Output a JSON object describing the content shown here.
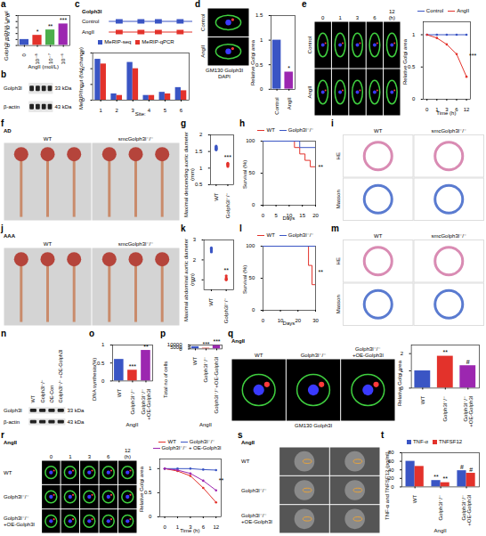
{
  "chart_data": [
    {
      "panel": "a",
      "type": "bar",
      "ylabel": "Golph3l mRNA Level",
      "xlabel": "AngII (mol/L)",
      "categories": [
        "0",
        "10⁻⁸",
        "10⁻⁷",
        "10⁻⁶"
      ],
      "values": [
        1.0,
        1.7,
        2.6,
        3.6
      ],
      "colors": [
        "#3a55c4",
        "#e3322b",
        "#4cae4c",
        "#9c27b0"
      ],
      "ylim": [
        0,
        5
      ],
      "yticks": [
        0,
        1,
        2,
        3,
        4,
        5
      ],
      "annotations": [
        {
          "category": "10⁻⁸",
          "text": "*"
        },
        {
          "category": "10⁻⁷",
          "text": "**"
        },
        {
          "category": "10⁻⁶",
          "text": "***"
        }
      ]
    },
    {
      "panel": "c",
      "type": "bar",
      "ylabel": "MeRIP/Input (fold change)",
      "xlabel": "Site:",
      "categories": [
        "1",
        "2",
        "3",
        "4",
        "5",
        "6"
      ],
      "series": [
        {
          "name": "MeRIP-seq",
          "color": "#3a55c4",
          "values": [
            2.6,
            0.4,
            2.4,
            0.3,
            0.5,
            0.8
          ]
        },
        {
          "name": "MeRIP-qPCR",
          "color": "#e3322b",
          "values": [
            2.3,
            0.3,
            2.0,
            0.3,
            0.4,
            0.6
          ]
        }
      ],
      "ylim": [
        0,
        3
      ],
      "yticks": [
        0,
        1,
        2,
        3
      ],
      "legend": "top"
    },
    {
      "panel": "d",
      "type": "bar",
      "ylabel": "Relative Golgi area",
      "categories": [
        "Control",
        "AngII"
      ],
      "values": [
        1.0,
        0.35
      ],
      "colors": [
        "#3a55c4",
        "#9c27b0"
      ],
      "ylim": [
        0,
        1.5
      ],
      "yticks": [
        0,
        0.5,
        1,
        1.5
      ],
      "annotations": [
        {
          "category": "AngII",
          "text": "*"
        }
      ]
    },
    {
      "panel": "e",
      "type": "line",
      "marker": "circle",
      "ylabel": "Relative Golgi area",
      "xlabel": "Time (h)",
      "categories": [
        "0",
        "1",
        "3",
        "6",
        "12"
      ],
      "series": [
        {
          "name": "Control",
          "color": "#3a55c4",
          "values": [
            1,
            1,
            1,
            1,
            1
          ]
        },
        {
          "name": "AngII",
          "color": "#e3322b",
          "values": [
            1,
            0.95,
            0.85,
            0.7,
            0.35
          ]
        }
      ],
      "ylim": [
        0,
        1.2
      ],
      "yticks": [
        0,
        0.5,
        1
      ],
      "legend": "top",
      "annotations": [
        {
          "category": "12",
          "y": 0.67,
          "text": "***"
        }
      ]
    },
    {
      "panel": "g",
      "type": "scatter",
      "ylabel": "Maximal descending aortic diameter (mm)",
      "categories": [
        "WT",
        "Golph3l⁻/⁻"
      ],
      "groups": [
        {
          "category": "WT",
          "color": "#3a55c4",
          "values": [
            1.55,
            1.6,
            1.63,
            1.58,
            1.66,
            1.6
          ]
        },
        {
          "category": "Golph3l⁻/⁻",
          "color": "#e3322b",
          "values": [
            1.05,
            1.1,
            1.15,
            1.08,
            1.12
          ]
        }
      ],
      "ylim": [
        0.5,
        2
      ],
      "yticks": [
        0.5,
        1,
        1.5,
        2
      ],
      "annotations": [
        {
          "category": "Golph3l⁻/⁻",
          "text": "***"
        }
      ]
    },
    {
      "panel": "h",
      "type": "line",
      "line_style": "step",
      "ylabel": "Survival (%)",
      "xlabel": "Days",
      "series": [
        {
          "name": "WT",
          "color": "#e3322b",
          "x": [
            0,
            10,
            12,
            14,
            16,
            18,
            20
          ],
          "values": [
            100,
            100,
            90,
            80,
            70,
            60,
            40
          ]
        },
        {
          "name": "Golph3l⁻/⁻",
          "color": "#3a55c4",
          "x": [
            0,
            14,
            20
          ],
          "values": [
            100,
            90,
            80
          ]
        }
      ],
      "xlim": [
        0,
        20
      ],
      "xticks": [
        0,
        5,
        10,
        15,
        20
      ],
      "ylim": [
        0,
        100
      ],
      "yticks": [
        0,
        50,
        100
      ],
      "legend": "top",
      "annotations": [
        {
          "x": 20,
          "y": 60,
          "text": "**"
        }
      ]
    },
    {
      "panel": "k",
      "type": "scatter",
      "ylabel": "Maximal abdominal aortic diameter (mm)",
      "categories": [
        "WT",
        "Golph3l⁻/⁻"
      ],
      "groups": [
        {
          "category": "WT",
          "color": "#3a55c4",
          "values": [
            2.4,
            2.5,
            2.55,
            2.45,
            2.6
          ]
        },
        {
          "category": "Golph3l⁻/⁻",
          "color": "#e3322b",
          "values": [
            1.0,
            1.1,
            1.2,
            1.05
          ]
        }
      ],
      "ylim": [
        0.5,
        3
      ],
      "yticks": [
        1,
        2,
        3
      ],
      "annotations": [
        {
          "category": "Golph3l⁻/⁻",
          "text": "**"
        }
      ]
    },
    {
      "panel": "l",
      "type": "line",
      "line_style": "step",
      "ylabel": "Survival (%)",
      "xlabel": "Days",
      "series": [
        {
          "name": "WT",
          "color": "#e3322b",
          "x": [
            0,
            24,
            26,
            28,
            30
          ],
          "values": [
            100,
            100,
            70,
            40,
            20
          ]
        },
        {
          "name": "Golph3l⁻/⁻",
          "color": "#3a55c4",
          "x": [
            0,
            30
          ],
          "values": [
            100,
            100
          ]
        }
      ],
      "xlim": [
        0,
        30
      ],
      "xticks": [
        0,
        10,
        20,
        30
      ],
      "ylim": [
        0,
        100
      ],
      "yticks": [
        0,
        50,
        100
      ],
      "legend": "top",
      "annotations": [
        {
          "x": 30,
          "y": 60,
          "text": "**"
        }
      ]
    },
    {
      "panel": "o",
      "type": "bar",
      "ylabel": "DNA synthesis(%)",
      "xlabel": "AngII",
      "categories": [
        "WT",
        "Golph3l⁻/⁻",
        "Golph3l⁻/⁻+OE-Golph3l"
      ],
      "values": [
        0.6,
        0.3,
        0.85
      ],
      "colors": [
        "#3a55c4",
        "#e3322b",
        "#9c27b0"
      ],
      "ylim": [
        0,
        1
      ],
      "yticks": [
        0,
        0.5,
        1
      ],
      "annotations": [
        {
          "category": "Golph3l⁻/⁻",
          "text": "***"
        },
        {
          "category": "Golph3l⁻/⁻+OE-Golph3l",
          "text": "**"
        }
      ]
    },
    {
      "panel": "p",
      "type": "bar",
      "ylabel": "Total no of cells",
      "xlabel": "AngII",
      "categories": [
        "WT",
        "Golph3l⁻/⁻",
        "Golph3l⁻/⁻+OE-Golph3l"
      ],
      "values": [
        5800,
        1800,
        8500
      ],
      "colors": [
        "#3a55c4",
        "#e3322b",
        "#9c27b0"
      ],
      "ylim": [
        0,
        10000
      ],
      "yticks": [
        0,
        5000,
        10000
      ],
      "annotations": [
        {
          "category": "Golph3l⁻/⁻",
          "text": "***"
        },
        {
          "category": "Golph3l⁻/⁻+OE-Golph3l",
          "text": "***"
        }
      ]
    },
    {
      "panel": "q",
      "type": "bar",
      "ylabel": "Relative Golgi area",
      "categories": [
        "WT",
        "Golph3l⁻/⁻",
        "Golph3l⁻/⁻+OE-Golph3l"
      ],
      "values": [
        1.0,
        1.85,
        1.3
      ],
      "colors": [
        "#3a55c4",
        "#e3322b",
        "#9c27b0"
      ],
      "ylim": [
        0,
        2.5
      ],
      "yticks": [
        0,
        1,
        2
      ],
      "annotations": [
        {
          "category": "Golph3l⁻/⁻",
          "text": "**"
        },
        {
          "category": "Golph3l⁻/⁻+OE-Golph3l",
          "text": "#"
        }
      ]
    },
    {
      "panel": "r",
      "type": "line",
      "marker": "circle",
      "ylabel": "Relative Golgi area",
      "xlabel": "Time (h)",
      "categories": [
        "0",
        "1",
        "3",
        "6",
        "12"
      ],
      "series": [
        {
          "name": "WT",
          "color": "#e3322b",
          "values": [
            1,
            0.95,
            0.85,
            0.6,
            0.3
          ]
        },
        {
          "name": "Golph3l⁻/⁻",
          "color": "#3a55c4",
          "values": [
            1,
            1,
            1,
            0.98,
            0.97
          ]
        },
        {
          "name": "Golph3l⁻/⁻ + OE-Golph3l",
          "color": "#9c27b0",
          "values": [
            1,
            0.97,
            0.9,
            0.75,
            0.55
          ]
        }
      ],
      "ylim": [
        0,
        1.2
      ],
      "yticks": [
        0,
        0.5,
        1
      ],
      "legend": "top",
      "annotations": [
        {
          "category": "12",
          "y": 0.76,
          "text": "**"
        }
      ]
    },
    {
      "panel": "t",
      "type": "bar",
      "ylabel": "TNF-α and TNFSF12 (pg/ml)",
      "xlabel": "AngII",
      "categories": [
        "WT",
        "Golph3l⁻/⁻",
        "Golph3l⁻/⁻+OE-Golph3l"
      ],
      "series": [
        {
          "name": "TNF-α",
          "color": "#3a55c4",
          "values": [
            60,
            15,
            38
          ]
        },
        {
          "name": "TNFSF12",
          "color": "#e3322b",
          "values": [
            48,
            10,
            32
          ]
        }
      ],
      "ylim": [
        0,
        80
      ],
      "yticks": [
        0,
        20,
        40,
        60,
        80
      ],
      "legend": "top",
      "annotations": [
        {
          "category": "Golph3l⁻/⁻",
          "series": "TNF-α",
          "text": "**"
        },
        {
          "category": "Golph3l⁻/⁻",
          "series": "TNFSF12",
          "text": "**"
        },
        {
          "category": "Golph3l⁻/⁻+OE-Golph3l",
          "series": "TNF-α",
          "text": "#"
        },
        {
          "category": "Golph3l⁻/⁻+OE-Golph3l",
          "series": "TNFSF12",
          "text": "#"
        }
      ]
    }
  ],
  "image_panels": [
    {
      "panel": "b",
      "kind": "blot",
      "rows": [
        "Golph3l",
        "β-actin"
      ],
      "right_labels": [
        "33 kDa",
        "43 kDa"
      ]
    },
    {
      "panel": "c",
      "kind": "diagram",
      "title": "Golph3l",
      "rows": [
        "Control",
        "AngII"
      ]
    },
    {
      "panel": "d",
      "kind": "fluorescence",
      "rows": [
        "Control",
        "AngII"
      ],
      "notes": [
        "GM130 Golph3l DAPI"
      ]
    },
    {
      "panel": "e",
      "kind": "fluorescence",
      "columns": [
        "0",
        "1",
        "3",
        "6",
        "12 (h)"
      ],
      "rows": [
        "Control",
        "AngII"
      ]
    },
    {
      "panel": "f",
      "kind": "photo",
      "title": "AD",
      "columns": [
        "WT",
        "smcGolph3l⁻/⁻"
      ]
    },
    {
      "panel": "i",
      "kind": "histology",
      "columns": [
        "WT",
        "smcGolph3l⁻/⁻"
      ],
      "rows": [
        "HE",
        "Masson"
      ]
    },
    {
      "panel": "j",
      "kind": "photo",
      "title": "AAA",
      "columns": [
        "WT",
        "smcGolph3l⁻/⁻"
      ]
    },
    {
      "panel": "m",
      "kind": "histology",
      "columns": [
        "WT",
        "smcGolph3l⁻/⁻"
      ],
      "rows": [
        "HE",
        "Masson"
      ]
    },
    {
      "panel": "n",
      "kind": "blot",
      "columns": [
        "WT",
        "Golph3l⁻/⁻",
        "OE-Con",
        "Golph3l⁻/⁻ +OE-Golph3l"
      ],
      "rows": [
        "Golph3l",
        "β-actin"
      ],
      "right_labels": [
        "33 kDa",
        "43 kDa"
      ]
    },
    {
      "panel": "q",
      "kind": "fluorescence",
      "title": "AngII",
      "columns": [
        "WT",
        "Golph3l⁻/⁻",
        "Golph3l⁻/⁻+OE-Golph3l"
      ],
      "notes": [
        "GM130 Golph3l"
      ]
    },
    {
      "panel": "r",
      "kind": "fluorescence",
      "title": "AngII",
      "columns": [
        "0",
        "1",
        "3",
        "6",
        "12 (h)"
      ],
      "rows": [
        "WT",
        "Golph3l⁻/⁻",
        "Golph3l⁻/⁻ +OE-Golph3l"
      ]
    },
    {
      "panel": "s",
      "kind": "em",
      "title": "AngII",
      "rows": [
        "WT",
        "Golph3l⁻/⁻",
        "Golph3l⁻/⁻ +OE-Golph3l"
      ]
    }
  ]
}
